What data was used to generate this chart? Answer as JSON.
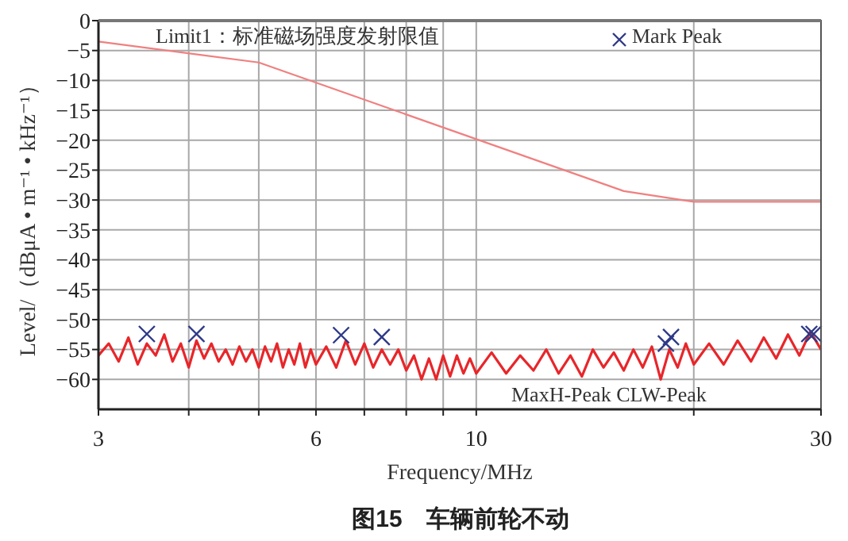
{
  "chart_data": {
    "type": "line",
    "title": "图15　车辆前轮不动",
    "xlabel": "Frequency/MHz",
    "ylabel": "Level/（dBμA • m⁻¹ • kHz⁻¹）",
    "log": "x",
    "grid": true,
    "xlim": [
      3,
      30
    ],
    "ylim": [
      -65,
      0
    ],
    "xticks": [
      3,
      {
        "value": 4,
        "label": null
      },
      {
        "value": 5,
        "label": null
      },
      6,
      {
        "value": 7,
        "label": null
      },
      {
        "value": 8,
        "label": null
      },
      {
        "value": 9,
        "label": null
      },
      10,
      {
        "value": 20,
        "label": null
      },
      30
    ],
    "yticks": [
      0,
      -5,
      -10,
      -15,
      -20,
      -25,
      -30,
      -35,
      -40,
      -45,
      -50,
      -55,
      -60
    ],
    "series": [
      {
        "name": "Limit1：标准磁场强度发射限值",
        "color": "#f08080",
        "x": [
          3,
          5,
          16,
          20,
          30
        ],
        "values": [
          -3.5,
          -7,
          -28.5,
          -30.3,
          -30.3
        ]
      },
      {
        "name": "MaxH-Peak CLW-Peak",
        "color": "#e8262a",
        "x": [
          3.0,
          3.1,
          3.2,
          3.3,
          3.4,
          3.5,
          3.6,
          3.7,
          3.8,
          3.9,
          4.0,
          4.1,
          4.2,
          4.3,
          4.4,
          4.5,
          4.6,
          4.7,
          4.8,
          4.9,
          5.0,
          5.1,
          5.2,
          5.3,
          5.4,
          5.5,
          5.6,
          5.7,
          5.8,
          5.9,
          6.0,
          6.2,
          6.4,
          6.6,
          6.8,
          7.0,
          7.2,
          7.4,
          7.6,
          7.8,
          8.0,
          8.2,
          8.4,
          8.6,
          8.8,
          9.0,
          9.2,
          9.4,
          9.6,
          9.8,
          10.0,
          10.5,
          11,
          11.5,
          12,
          12.5,
          13,
          13.5,
          14,
          14.5,
          15,
          15.5,
          16,
          16.5,
          17,
          17.5,
          18,
          18.5,
          19,
          19.5,
          20,
          21,
          22,
          23,
          24,
          25,
          26,
          27,
          28,
          29,
          30
        ],
        "values": [
          -56,
          -54,
          -57,
          -53,
          -57.5,
          -54,
          -56,
          -52.5,
          -57,
          -54,
          -58,
          -53.5,
          -56.5,
          -54,
          -57,
          -55,
          -57.5,
          -54.5,
          -57,
          -55,
          -58,
          -54.5,
          -57,
          -54,
          -58,
          -55,
          -57.5,
          -54,
          -58,
          -55,
          -57.5,
          -54.5,
          -58,
          -53.5,
          -57.5,
          -54,
          -58,
          -55,
          -57.5,
          -55,
          -58.5,
          -56,
          -60,
          -56.5,
          -60,
          -56,
          -59.5,
          -56,
          -59,
          -56.5,
          -59,
          -55.5,
          -59,
          -56,
          -58.5,
          -55,
          -59,
          -56,
          -59.5,
          -55,
          -58,
          -55.5,
          -58.5,
          -55,
          -58,
          -54.5,
          -60,
          -55,
          -58,
          -54,
          -57.5,
          -54,
          -57.5,
          -53.5,
          -57,
          -53,
          -56.5,
          -52.5,
          -56,
          -52,
          -55
        ]
      },
      {
        "name": "Mark Peak",
        "type": "scatter",
        "marker": "cross",
        "color": "#2e3a87",
        "x": [
          3.5,
          4.1,
          6.5,
          7.4,
          18.3,
          18.6,
          28.9,
          29.3
        ],
        "values": [
          -52.4,
          -52.4,
          -52.6,
          -52.9,
          -54,
          -52.9,
          -52.4,
          -52.4
        ]
      }
    ]
  }
}
